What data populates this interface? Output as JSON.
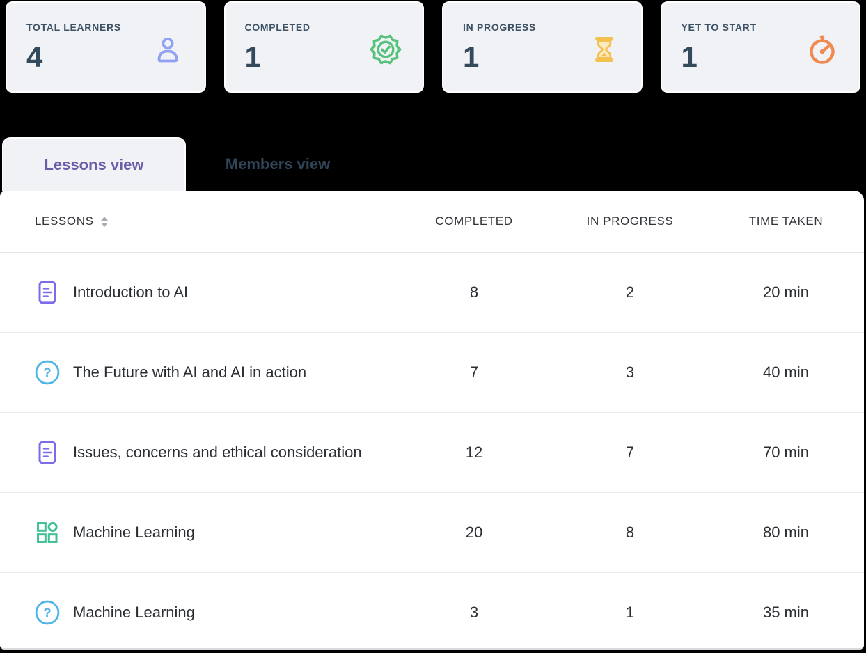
{
  "stats": [
    {
      "label": "TOTAL LEARNERS",
      "value": "4",
      "icon": "user-icon",
      "color": "#92a2f3"
    },
    {
      "label": "COMPLETED",
      "value": "1",
      "icon": "badge-check-icon",
      "color": "#57c27c"
    },
    {
      "label": "IN PROGRESS",
      "value": "1",
      "icon": "hourglass-icon",
      "color": "#f2c150"
    },
    {
      "label": "YET TO START",
      "value": "1",
      "icon": "stopwatch-icon",
      "color": "#ef8a52"
    }
  ],
  "tabs": [
    {
      "label": "Lessons view",
      "active": true
    },
    {
      "label": "Members view",
      "active": false
    }
  ],
  "table": {
    "headers": [
      "LESSONS",
      "COMPLETED",
      "IN PROGRESS",
      "TIME TAKEN"
    ],
    "sort_icon": "sort-icon",
    "rows": [
      {
        "icon": "document-icon",
        "icon_color": "#7b6cea",
        "title": "Introduction to AI",
        "completed": "8",
        "in_progress": "2",
        "time_taken": "20 min"
      },
      {
        "icon": "question-circle-icon",
        "icon_color": "#4db5ea",
        "title": "The Future with AI and AI in action",
        "completed": "7",
        "in_progress": "3",
        "time_taken": "40 min"
      },
      {
        "icon": "document-icon",
        "icon_color": "#7b6cea",
        "title": "Issues, concerns and ethical consideration",
        "completed": "12",
        "in_progress": "7",
        "time_taken": "70 min"
      },
      {
        "icon": "grid-icon",
        "icon_color": "#3fbf92",
        "title": "Machine Learning",
        "completed": "20",
        "in_progress": "8",
        "time_taken": "80 min"
      },
      {
        "icon": "question-circle-icon",
        "icon_color": "#4db5ea",
        "title": "Machine Learning",
        "completed": "3",
        "in_progress": "1",
        "time_taken": "35 min"
      }
    ]
  },
  "colors": {
    "page_bg": "#000000",
    "card_bg": "#f0f2f6",
    "panel_bg": "#ffffff",
    "active_tab_text": "#6b5ca8",
    "inactive_tab_text": "#2f4457",
    "stat_label_text": "#3d5164",
    "stat_value_text": "#33495c",
    "row_text": "#2b2e33"
  }
}
